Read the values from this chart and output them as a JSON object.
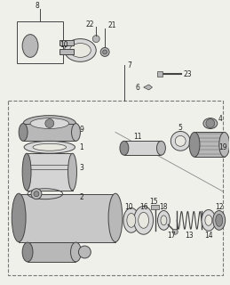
{
  "bg_color": "#f0f0eb",
  "lc": "#444444",
  "fc_light": "#d8d8d8",
  "fc_mid": "#b8b8b8",
  "fc_dark": "#909090",
  "figsize": [
    2.59,
    3.2
  ],
  "dpi": 100
}
